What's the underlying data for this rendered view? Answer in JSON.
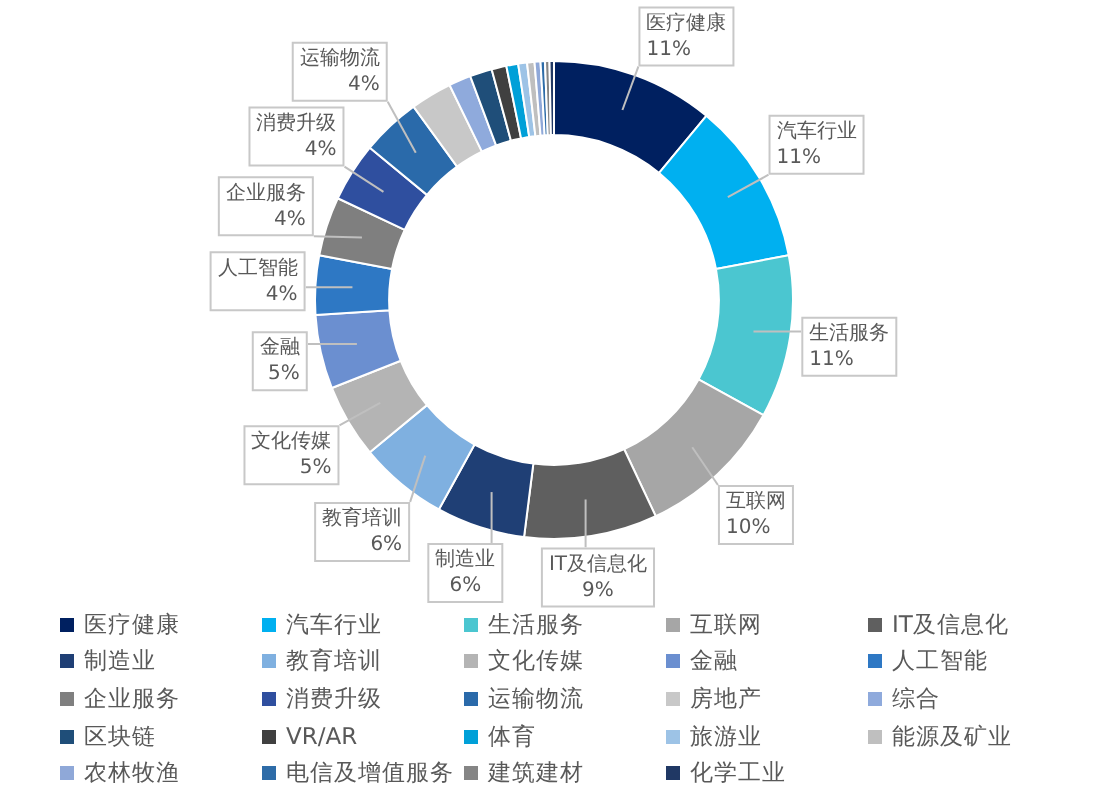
{
  "chart_data": {
    "type": "donut",
    "categories": [
      "医疗健康",
      "汽车行业",
      "生活服务",
      "互联网",
      "IT及信息化",
      "制造业",
      "教育培训",
      "文化传媒",
      "金融",
      "人工智能",
      "企业服务",
      "消费升级",
      "运输物流",
      "房地产",
      "综合",
      "区块链",
      "VR/AR",
      "体育",
      "旅游业",
      "能源及矿业",
      "农林牧渔",
      "电信及增值服务",
      "建筑建材",
      "化学工业"
    ],
    "values": [
      11,
      11,
      11,
      10,
      9,
      6,
      6,
      5,
      5,
      4,
      4,
      4,
      4,
      2.8,
      1.5,
      1.5,
      1,
      0.8,
      0.6,
      0.5,
      0.4,
      0.3,
      0.3,
      0.3
    ],
    "value_labels": [
      "11%",
      "11%",
      "11%",
      "10%",
      "9%",
      "6%",
      "6%",
      "5%",
      "5%",
      "4%",
      "4%",
      "4%",
      "4%",
      null,
      null,
      null,
      null,
      null,
      null,
      null,
      null,
      null,
      null,
      null
    ],
    "colors": [
      "#002060",
      "#00b0f0",
      "#4bc6d0",
      "#a6a6a6",
      "#5f5f5f",
      "#1f3f75",
      "#7fb0e0",
      "#b4b4b4",
      "#6b8fd0",
      "#2e78c4",
      "#7f7f7f",
      "#2f4f9f",
      "#2a6aaa",
      "#c8c8c8",
      "#8faadc",
      "#1f4e79",
      "#404040",
      "#00a0d8",
      "#9dc3e6",
      "#bfbfbf",
      "#8fa8d8",
      "#2e6ca8",
      "#858585",
      "#203864"
    ],
    "legend": "bottom"
  }
}
